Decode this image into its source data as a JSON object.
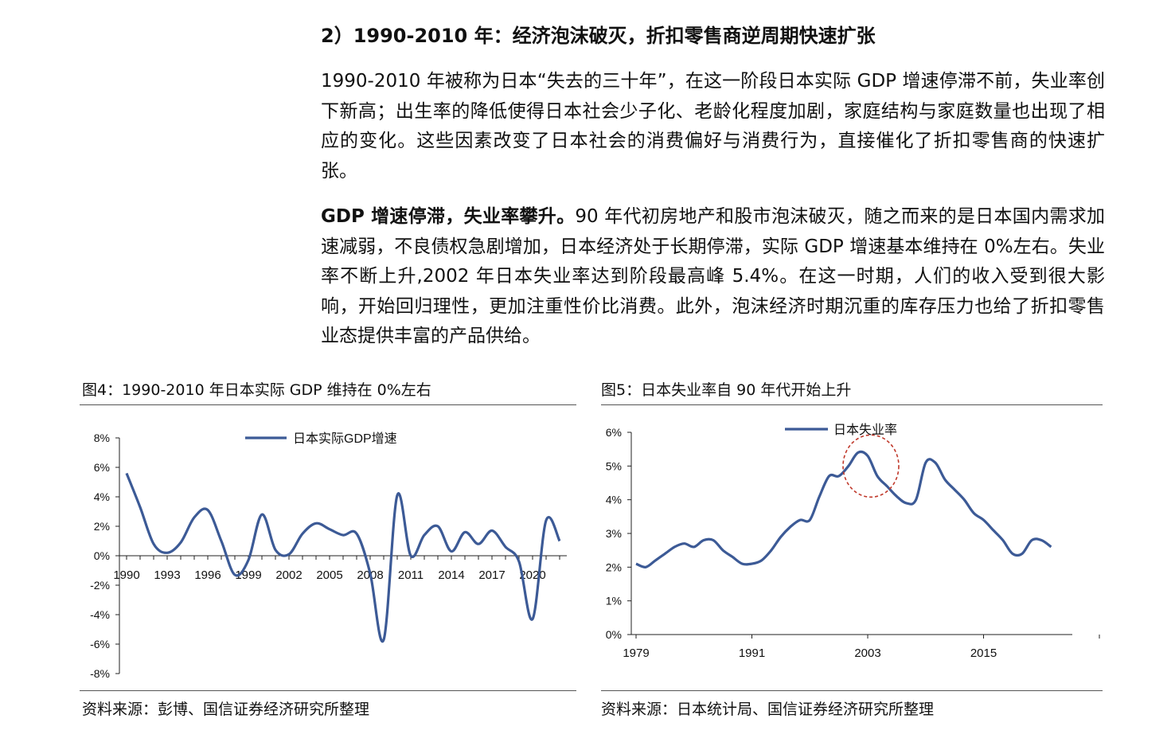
{
  "heading": "2）1990-2010 年：经济泡沫破灭，折扣零售商逆周期快速扩张",
  "para1": "1990-2010 年被称为日本“失去的三十年”，在这一阶段日本实际 GDP 增速停滞不前，失业率创下新高；出生率的降低使得日本社会少子化、老龄化程度加剧，家庭结构与家庭数量也出现了相应的变化。这些因素改变了日本社会的消费偏好与消费行为，直接催化了折扣零售商的快速扩张。",
  "para2_lead": "GDP 增速停滞，失业率攀升。",
  "para2_body": "90 年代初房地产和股市泡沫破灭，随之而来的是日本国内需求加速减弱，不良债权急剧增加，日本经济处于长期停滞，实际 GDP 增速基本维持在 0%左右。失业率不断上升,2002 年日本失业率达到阶段最高峰 5.4%。在这一时期，人们的收入受到很大影响，开始回归理性，更加注重性价比消费。此外，泡沫经济时期沉重的库存压力也给了折扣零售业态提供丰富的产品供给。",
  "fig4": {
    "title": "图4：1990-2010 年日本实际 GDP 维持在 0%左右",
    "source": "资料来源：彭博、国信证券经济研究所整理"
  },
  "fig5": {
    "title": "图5：日本失业率自 90 年代开始上升",
    "source": "资料来源：日本统计局、国信证券经济研究所整理"
  },
  "chart_data": [
    {
      "type": "line",
      "legend": "日本实际GDP增速",
      "legend_position": "top-center",
      "ylim": [
        -8,
        8
      ],
      "yticks": [
        "8%",
        "6%",
        "4%",
        "2%",
        "0%",
        "-2%",
        "-4%",
        "-6%",
        "-8%"
      ],
      "xticks": [
        "1990",
        "1993",
        "1996",
        "1999",
        "2002",
        "2005",
        "2008",
        "2011",
        "2014",
        "2017",
        "2020"
      ],
      "x": [
        1990,
        1991,
        1992,
        1993,
        1994,
        1995,
        1996,
        1997,
        1998,
        1999,
        2000,
        2001,
        2002,
        2003,
        2004,
        2005,
        2006,
        2007,
        2008,
        2009,
        2010,
        2011,
        2012,
        2013,
        2014,
        2015,
        2016,
        2017,
        2018,
        2019,
        2020,
        2021,
        2022
      ],
      "series": [
        {
          "name": "日本实际GDP增速",
          "color": "#3c5a96",
          "values": [
            5.6,
            3.3,
            0.8,
            0.2,
            0.9,
            2.6,
            3.1,
            1.0,
            -1.3,
            -0.3,
            2.8,
            0.4,
            0.1,
            1.5,
            2.2,
            1.8,
            1.4,
            1.5,
            -1.2,
            -5.7,
            4.1,
            0.0,
            1.4,
            2.0,
            0.3,
            1.6,
            0.8,
            1.7,
            0.6,
            -0.4,
            -4.3,
            2.4,
            1.0
          ]
        }
      ],
      "grid": false
    },
    {
      "type": "line",
      "legend": "日本失业率",
      "legend_position": "top-center",
      "ylim": [
        0,
        6
      ],
      "yticks": [
        "6%",
        "5%",
        "4%",
        "3%",
        "2%",
        "1%",
        "0%"
      ],
      "xticks": [
        "1979",
        "1991",
        "2003",
        "2015"
      ],
      "x": [
        1979,
        1980,
        1981,
        1982,
        1983,
        1984,
        1985,
        1986,
        1987,
        1988,
        1989,
        1990,
        1991,
        1992,
        1993,
        1994,
        1995,
        1996,
        1997,
        1998,
        1999,
        2000,
        2001,
        2002,
        2003,
        2004,
        2005,
        2006,
        2007,
        2008,
        2009,
        2010,
        2011,
        2012,
        2013,
        2014,
        2015,
        2016,
        2017,
        2018,
        2019,
        2020,
        2021,
        2022
      ],
      "series": [
        {
          "name": "日本失业率",
          "color": "#3c5a96",
          "values": [
            2.1,
            2.0,
            2.2,
            2.4,
            2.6,
            2.7,
            2.6,
            2.8,
            2.8,
            2.5,
            2.3,
            2.1,
            2.1,
            2.2,
            2.5,
            2.9,
            3.2,
            3.4,
            3.4,
            4.1,
            4.7,
            4.7,
            5.0,
            5.4,
            5.3,
            4.7,
            4.4,
            4.1,
            3.9,
            4.0,
            5.1,
            5.1,
            4.6,
            4.3,
            4.0,
            3.6,
            3.4,
            3.1,
            2.8,
            2.4,
            2.4,
            2.8,
            2.8,
            2.6
          ]
        }
      ],
      "highlight": {
        "x": 2003,
        "y": 5.0,
        "color": "#c0392b"
      },
      "grid": false
    }
  ]
}
